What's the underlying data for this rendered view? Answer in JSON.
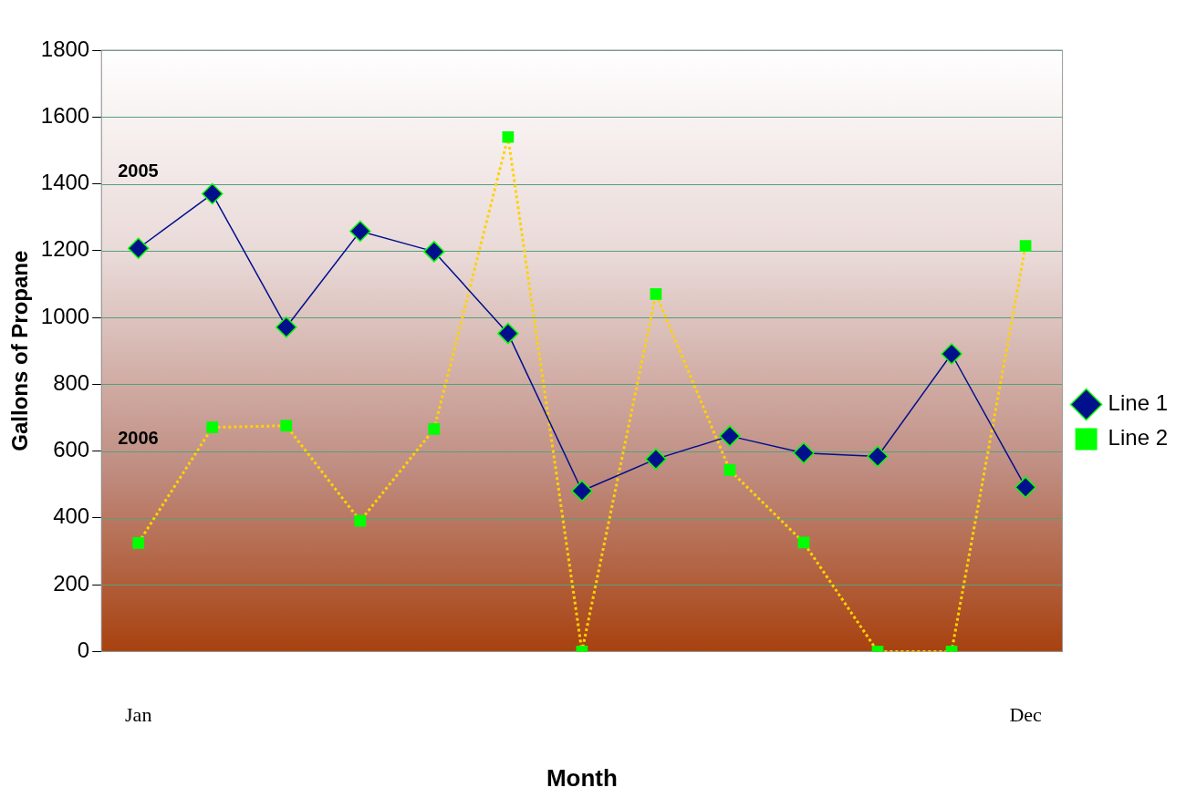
{
  "chart_data": {
    "type": "line",
    "xlabel": "Month",
    "ylabel": "Gallons of Propane",
    "categories": [
      "Jan",
      null,
      null,
      null,
      null,
      null,
      null,
      null,
      null,
      null,
      null,
      null,
      "Dec"
    ],
    "series": [
      {
        "name": "Line 1",
        "color": "#000f8c",
        "marker": "diamond",
        "line_style": "solid",
        "values": [
          1207,
          1370,
          971,
          1258,
          1197,
          952,
          481,
          576,
          645,
          594,
          584,
          891,
          492
        ]
      },
      {
        "name": "Line 2",
        "color": "#ffd200",
        "marker": "square",
        "line_style": "dotted",
        "values": [
          325,
          671,
          676,
          391,
          666,
          1540,
          0,
          1070,
          543,
          326,
          0,
          0,
          1214
        ]
      }
    ],
    "ylim": [
      0,
      1800
    ],
    "yticks": [
      0,
      200,
      400,
      600,
      800,
      1000,
      1200,
      1400,
      1600,
      1800
    ],
    "grid": "y",
    "legend": "right",
    "annotations": [
      "2005",
      "2006"
    ]
  }
}
